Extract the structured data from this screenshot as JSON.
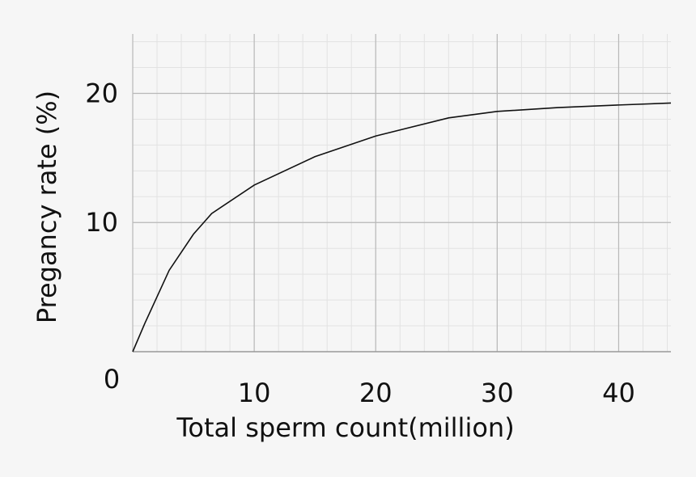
{
  "chart_data": {
    "type": "line",
    "x_label": "Total sperm count(million)",
    "y_label": "Pregancy rate (%)",
    "x": [
      0,
      1,
      3,
      5,
      6.5,
      10,
      15,
      20,
      26,
      30,
      35,
      40,
      44.3
    ],
    "series": [
      {
        "color": "#111111",
        "values": [
          0,
          2.2,
          6.3,
          9.1,
          10.7,
          12.9,
          15.1,
          16.7,
          18.1,
          18.6,
          18.9,
          19.1,
          19.25
        ]
      }
    ],
    "xlim": [
      0,
      44.3
    ],
    "ylim": [
      0,
      24.6
    ],
    "xticks": [
      0,
      10,
      20,
      30,
      40
    ],
    "yticks": [
      10,
      20
    ],
    "grid": true,
    "minor_grid_divisions": 5
  }
}
